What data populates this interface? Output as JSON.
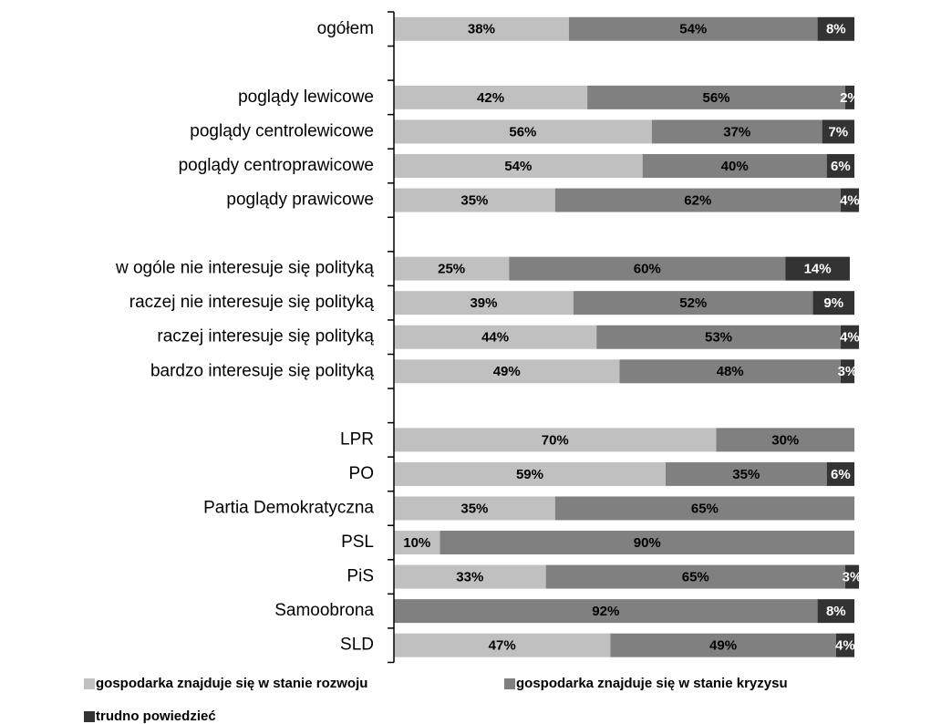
{
  "chart_data": {
    "type": "bar",
    "orientation": "horizontal",
    "stacked": true,
    "categories": [
      "ogółem",
      null,
      "poglądy lewicowe",
      "poglądy centrolewicowe",
      "poglądy centroprawicowe",
      "poglądy prawicowe",
      null,
      "w ogóle nie interesuje się polityką",
      "raczej nie interesuje się polityką",
      "raczej interesuje się polityką",
      "bardzo interesuje się polityką",
      null,
      "LPR",
      "PO",
      "Partia Demokratyczna",
      "PSL",
      "PiS",
      "Samoobrona",
      "SLD"
    ],
    "xlim": [
      0,
      100
    ],
    "series": [
      {
        "name": "gospodarka znajduje się w stanie rozwoju",
        "color": "#c0c0c0",
        "values": [
          38,
          null,
          42,
          56,
          54,
          35,
          null,
          25,
          39,
          44,
          49,
          null,
          70,
          59,
          35,
          10,
          33,
          null,
          47
        ],
        "value_labels": [
          "38%",
          null,
          "42%",
          "56%",
          "54%",
          "35%",
          null,
          "25%",
          "39%",
          "44%",
          "49%",
          null,
          "70%",
          "59%",
          "35%",
          "10%",
          "33%",
          null,
          "47%"
        ]
      },
      {
        "name": "gospodarka znajduje się w stanie kryzysu",
        "color": "#808080",
        "values": [
          54,
          null,
          56,
          37,
          40,
          62,
          null,
          60,
          52,
          53,
          48,
          null,
          30,
          35,
          65,
          90,
          65,
          92,
          49
        ],
        "value_labels": [
          "54%",
          null,
          "56%",
          "37%",
          "40%",
          "62%",
          null,
          "60%",
          "52%",
          "53%",
          "48%",
          null,
          "30%",
          "35%",
          "65%",
          "90%",
          "65%",
          "92%",
          "49%"
        ]
      },
      {
        "name": "trudno powiedzieć",
        "color": "#333333",
        "values": [
          8,
          null,
          2,
          7,
          6,
          4,
          null,
          14,
          9,
          4,
          3,
          null,
          null,
          6,
          null,
          null,
          3,
          8,
          4
        ],
        "value_labels": [
          "8%",
          null,
          "2%",
          "7%",
          "6%",
          "4%",
          null,
          "14%",
          "9%",
          "4%",
          "3%",
          null,
          null,
          "6%",
          null,
          null,
          "3%",
          "8%",
          "4%"
        ]
      }
    ]
  }
}
